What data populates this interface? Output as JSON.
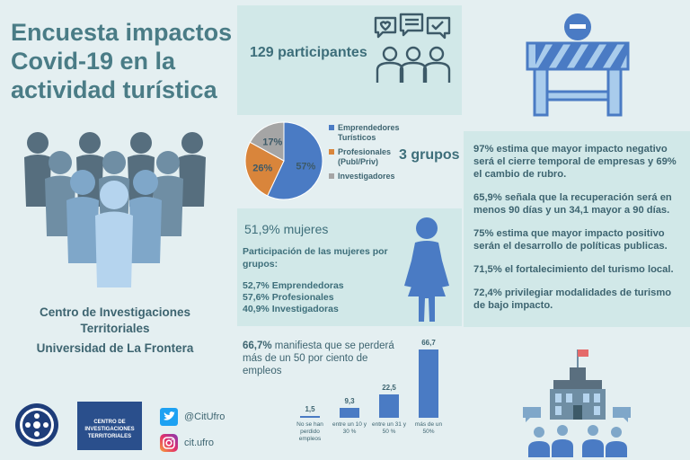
{
  "title_lines": [
    "Encuesta impactos",
    "Covid-19 en la",
    "actividad turística"
  ],
  "participants": "129 participantes",
  "groups_label": "3 grupos",
  "pie": {
    "slices": [
      {
        "label": "Emprendedores Turísticos",
        "value": 57,
        "text": "57%",
        "color": "#4a7bc4"
      },
      {
        "label": "Profesionales (Publ/Priv)",
        "value": 26,
        "text": "26%",
        "color": "#d9853b"
      },
      {
        "label": "Investigadores",
        "value": 17,
        "text": "17%",
        "color": "#a5a5a5"
      }
    ],
    "legend": [
      "Emprendedores Turísticos",
      "Profesionales (Publ/Priv)",
      "Investigadores"
    ]
  },
  "women": {
    "headline": "51,9% mujeres",
    "subtitle": "Participación de las mujeres por grupos:",
    "lines": [
      "52,7% Emprendedoras",
      "57,6% Profesionales",
      "40,9% Investigadoras"
    ]
  },
  "findings": [
    "97% estima que mayor impacto negativo será el cierre temporal de empresas y  69% el cambio de rubro.",
    "65,9% señala que la recuperación será en menos 90 días y un 34,1 mayor a 90 días.",
    "75%  estima que mayor impacto positivo serán el desarrollo de políticas publicas.",
    "71,5% el fortalecimiento del turismo local.",
    "72,4% privilegiar modalidades de turismo de bajo impacto."
  ],
  "bar_section": {
    "headline_bold": "66,7%",
    "headline_rest": " manifiesta que se perderá más de un 50 por ciento de empleos"
  },
  "chart_data": {
    "type": "bar",
    "categories": [
      "No se han perdido empleos",
      "entre un 10 y 30 %",
      "entre un 31 y 50 %",
      "más de un 50%"
    ],
    "values": [
      1.5,
      9.3,
      22.5,
      66.7
    ],
    "value_labels": [
      "1,5",
      "9,3",
      "22,5",
      "66,7"
    ],
    "color": "#4a7bc4",
    "ylim": [
      0,
      70
    ]
  },
  "center_name": "Centro de Investigaciones Territoriales",
  "university": "Universidad de La Frontera",
  "logo_text": [
    "CENTRO DE",
    "INVESTIGACIONES",
    "TERRITORIALES"
  ],
  "social": {
    "twitter": "@CitUfro",
    "instagram": "cit.ufro"
  },
  "colors": {
    "accent": "#4a7c86",
    "panel": "#d1e8e8",
    "blue": "#4a7bc4",
    "orange": "#d9853b",
    "gray": "#a5a5a5"
  }
}
